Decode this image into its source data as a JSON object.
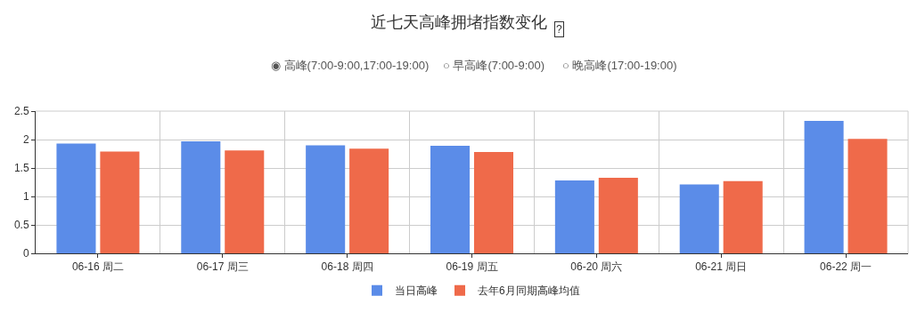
{
  "chart_data": {
    "type": "bar",
    "title": "近七天高峰拥堵指数变化",
    "annotations": [
      "?",
      "◉ 高峰(7:00-9:00,17:00-19:00)",
      "○ 早高峰(7:00-9:00)",
      "○ 晚高峰(17:00-19:00)"
    ],
    "categories": [
      "06-16 周二",
      "06-17 周三",
      "06-18 周四",
      "06-19 周五",
      "06-20 周六",
      "06-21 周日",
      "06-22 周一"
    ],
    "series": [
      {
        "name": "当日高峰",
        "color": "#5b8ce8",
        "values": [
          1.93,
          1.97,
          1.9,
          1.89,
          1.28,
          1.21,
          2.33
        ]
      },
      {
        "name": "去年6月同期高峰均值",
        "color": "#ef6a4a",
        "values": [
          1.79,
          1.81,
          1.84,
          1.78,
          1.33,
          1.27,
          2.01
        ]
      }
    ],
    "ylim": [
      0,
      2.5
    ],
    "yticks": [
      0,
      0.5,
      1,
      1.5,
      2,
      2.5
    ],
    "grid": true,
    "legend": "bottom"
  }
}
